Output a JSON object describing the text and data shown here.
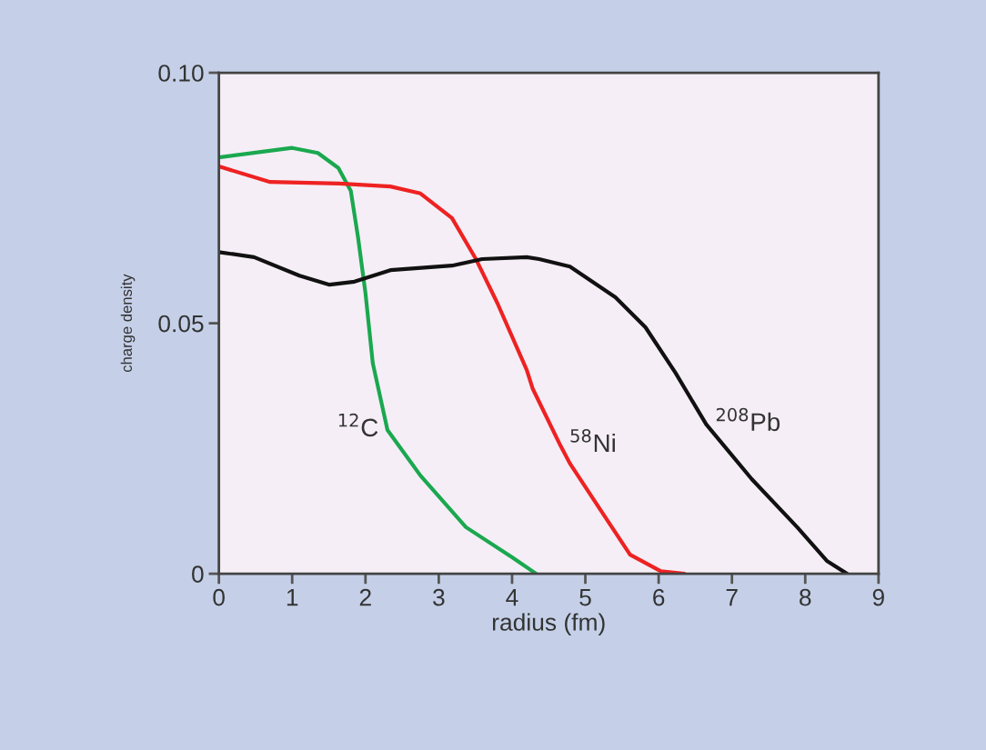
{
  "chart_data": {
    "type": "line",
    "xlabel": "radius (fm)",
    "ylabel": "charge density",
    "xlim": [
      0,
      9
    ],
    "xticks": [
      0,
      1,
      2,
      3,
      4,
      5,
      6,
      7,
      8,
      9
    ],
    "ylim": [
      0,
      0.1
    ],
    "yticks": [
      0,
      0.05,
      {
        "value": 0.1,
        "label": "0.10"
      }
    ],
    "grid": false,
    "legend": false,
    "marker": "none",
    "line_style": "solid",
    "series": [
      {
        "name": "$^{12}$C",
        "color": "#1aa84f",
        "x": [
          0,
          1.0,
          1.35,
          1.63,
          1.8,
          1.9,
          2.0,
          2.1,
          2.3,
          2.75,
          3.37,
          4.0,
          4.33
        ],
        "values": [
          0.0831,
          0.085,
          0.084,
          0.081,
          0.0764,
          0.067,
          0.056,
          0.042,
          0.0287,
          0.0196,
          0.0093,
          0.0033,
          0
        ]
      },
      {
        "name": "$^{58}$Ni",
        "color": "#ee2222",
        "x": [
          0,
          0.7,
          1.64,
          2.34,
          2.75,
          3.18,
          3.5,
          3.8,
          4.2,
          4.28,
          4.66,
          4.79,
          5.2,
          5.61,
          6.03,
          6.35
        ],
        "values": [
          0.0813,
          0.0782,
          0.0779,
          0.0773,
          0.0759,
          0.071,
          0.063,
          0.054,
          0.0407,
          0.037,
          0.0256,
          0.022,
          0.0129,
          0.0038,
          0.0005,
          0
        ]
      },
      {
        "name": "$^{208}$Pb",
        "color": "#111111",
        "x": [
          0,
          0.48,
          1.1,
          1.51,
          1.85,
          2.34,
          3.18,
          3.59,
          4.2,
          4.37,
          4.79,
          5.41,
          5.82,
          6.23,
          6.65,
          7.27,
          7.89,
          8.3,
          8.57
        ],
        "values": [
          0.0642,
          0.0632,
          0.0595,
          0.0577,
          0.0583,
          0.0606,
          0.0615,
          0.0628,
          0.0632,
          0.0628,
          0.0613,
          0.0552,
          0.0492,
          0.0401,
          0.0298,
          0.0189,
          0.0093,
          0.0025,
          0
        ]
      }
    ]
  }
}
